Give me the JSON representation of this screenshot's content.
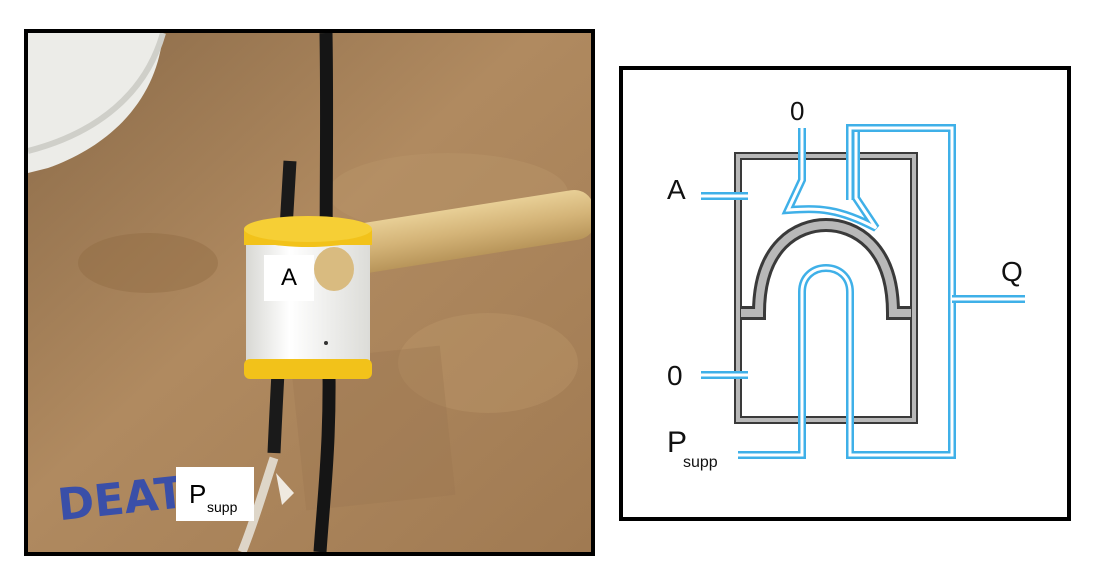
{
  "photo": {
    "label_a": "A",
    "label_psupp_main": "P",
    "label_psupp_sub": "supp",
    "marker_text": "DEATH"
  },
  "schematic": {
    "port_0_top": "0",
    "port_a": "A",
    "port_q": "Q",
    "port_0_bottom": "0",
    "port_psupp_main": "P",
    "port_psupp_sub": "supp"
  },
  "colors": {
    "pipe_blue": "#3fb0e8",
    "housing_gray": "#8a8a8a",
    "wood": "#a9825a",
    "collar_yellow": "#f2c21a"
  }
}
